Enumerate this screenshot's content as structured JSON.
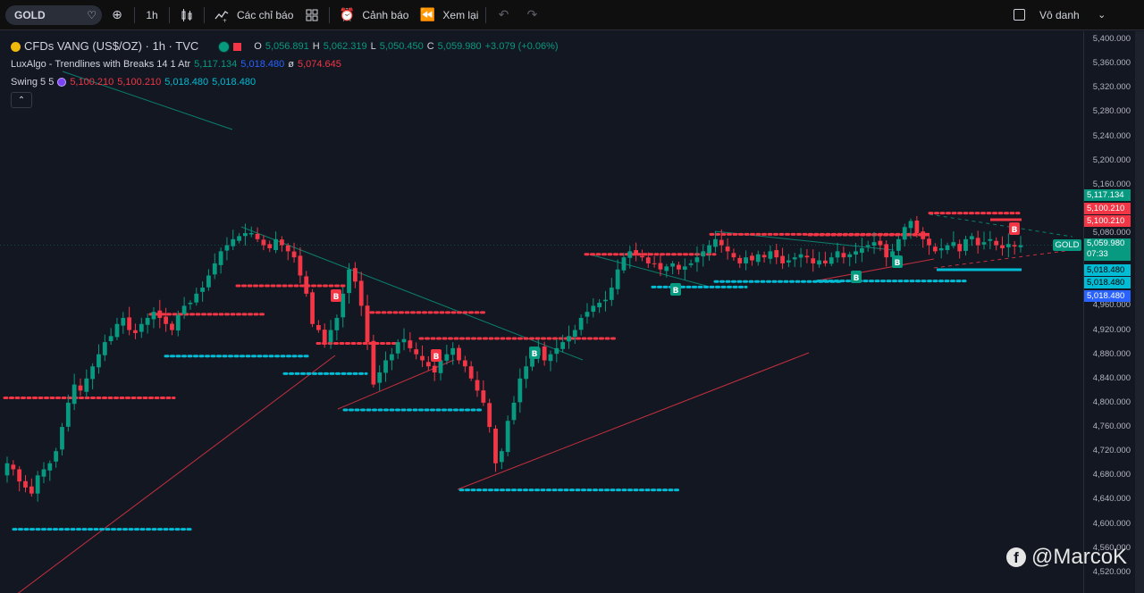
{
  "toolbar": {
    "symbol": "GOLD",
    "interval": "1h",
    "indicators_label": "Các chỉ báo",
    "alerts_label": "Cảnh báo",
    "replay_label": "Xem lại",
    "layout_label": "Vô danh"
  },
  "legend": {
    "title": "CFDs VANG (US$/OZ) · 1h · TVC",
    "open_label": "O",
    "open": "5,056.891",
    "high_label": "H",
    "high": "5,062.319",
    "low_label": "L",
    "low": "5,050.450",
    "close_label": "C",
    "close": "5,059.980",
    "change": "+3.079 (+0.06%)",
    "ind1_name": "LuxAlgo - Trendlines with Breaks 14 1 Atr",
    "ind1_v1": "5,117.134",
    "ind1_v2": "5,018.480",
    "ind1_sym": "ø",
    "ind1_v3": "5,074.645",
    "ind2_name": "Swing 5 5",
    "ind2_v1": "5,100.210",
    "ind2_v2": "5,100.210",
    "ind2_v3": "5,018.480",
    "ind2_v4": "5,018.480"
  },
  "price_axis": {
    "ticks": [
      "5,400.000",
      "5,360.000",
      "5,320.000",
      "5,280.000",
      "5,240.000",
      "5,200.000",
      "5,160.000",
      "5,080.000",
      "4,960.000",
      "4,920.000",
      "4,880.000",
      "4,840.000",
      "4,800.000",
      "4,760.000",
      "4,720.000",
      "4,680.000",
      "4,640.000",
      "4,600.000",
      "4,560.000",
      "4,520.000"
    ],
    "tag_upper": "5,117.134",
    "tag_swing_high_1": "5,100.210",
    "tag_swing_high_2": "5,100.210",
    "tag_price": "5,059.980",
    "tag_countdown": "07:33",
    "tag_swing_low_1": "5,018.480",
    "tag_swing_low_2": "5,018.480",
    "tag_lower": "5,018.480",
    "symbol_tag": "GOLD"
  },
  "signals": {
    "break_label": "B"
  },
  "watermark": {
    "text": "@MarcoK"
  },
  "colors": {
    "up": "#089981",
    "down": "#f23645",
    "cyan": "#00bcd4",
    "background": "#131722"
  },
  "chart_data": {
    "type": "candlestick",
    "symbol": "GOLD",
    "ylim": [
      4520,
      5400
    ],
    "last_price": 5059.98,
    "resistance_levels": [
      4808,
      4590,
      4993,
      4898,
      4946,
      4949,
      4906,
      4905,
      5045,
      5077,
      5078,
      5073,
      5113
    ],
    "support_levels": [
      4591,
      4877,
      4848,
      4788,
      4787,
      4656,
      4991,
      5000,
      5001,
      5021
    ],
    "closes": [
      4700,
      4690,
      4670,
      4660,
      4650,
      4680,
      4690,
      4700,
      4720,
      4760,
      4800,
      4830,
      4820,
      4840,
      4860,
      4880,
      4900,
      4910,
      4930,
      4940,
      4920,
      4915,
      4930,
      4940,
      4950,
      4940,
      4930,
      4920,
      4945,
      4960,
      4965,
      4980,
      4990,
      5010,
      5030,
      5050,
      5060,
      5070,
      5075,
      5080,
      5080,
      5070,
      5060,
      5055,
      5070,
      5060,
      5050,
      5040,
      5010,
      4980,
      4930,
      4920,
      4900,
      4920,
      4940,
      4980,
      5020,
      5000,
      4960,
      4900,
      4830,
      4850,
      4870,
      4880,
      4900,
      4905,
      4890,
      4880,
      4870,
      4860,
      4850,
      4870,
      4880,
      4890,
      4870,
      4860,
      4840,
      4820,
      4800,
      4760,
      4700,
      4720,
      4770,
      4800,
      4840,
      4860,
      4880,
      4890,
      4870,
      4880,
      4890,
      4900,
      4910,
      4920,
      4940,
      4950,
      4960,
      4965,
      4970,
      4990,
      5020,
      5040,
      5050,
      5045,
      5040,
      5030,
      5030,
      5020,
      5025,
      5030,
      5020,
      5025,
      5030,
      5040,
      5050,
      5060,
      5070,
      5060,
      5050,
      5040,
      5030,
      5040,
      5035,
      5045,
      5040,
      5050,
      5040,
      5030,
      5035,
      5040,
      5045,
      5040,
      5030,
      5035,
      5030,
      5040,
      5050,
      5040,
      5045,
      5050,
      5055,
      5060,
      5065,
      5060,
      5040,
      5050,
      5070,
      5090,
      5100,
      5080,
      5070,
      5060,
      5050,
      5055,
      5060,
      5065,
      5050,
      5070,
      5075,
      5060,
      5065,
      5070,
      5060,
      5055,
      5062,
      5058,
      5060
    ]
  }
}
